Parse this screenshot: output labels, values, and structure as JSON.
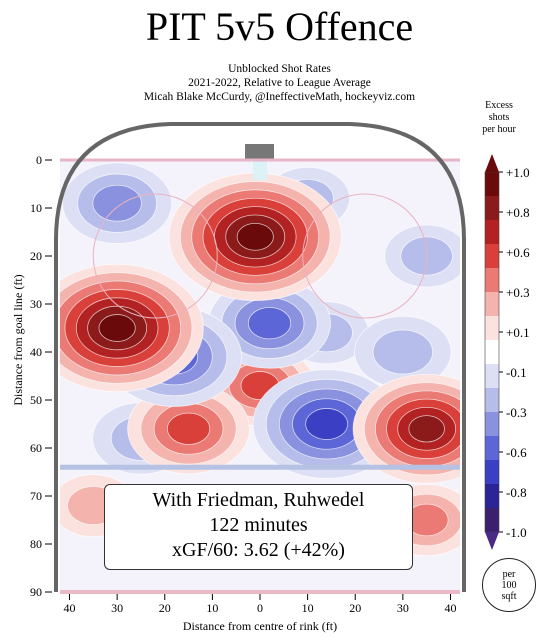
{
  "header": {
    "title": "PIT 5v5 Offence",
    "subtitle_1": "Unblocked Shot Rates",
    "subtitle_2": "2021-2022, Relative to League Average",
    "subtitle_3": "Micah Blake McCurdy, @IneffectiveMath, hockeyviz.com"
  },
  "info_box": {
    "line_1": "With Friedman, Ruhwedel",
    "line_2": "122 minutes",
    "line_3": "xGF/60: 3.62 (+42%)"
  },
  "legend": {
    "title_1": "Excess",
    "title_2": "shots",
    "title_3": "per hour",
    "unit_1": "per",
    "unit_2": "100",
    "unit_3": "sqft",
    "labels": [
      "+1.0",
      "+0.8",
      "+0.6",
      "+0.3",
      "+0.1",
      "-0.1",
      "-0.3",
      "-0.6",
      "-0.8",
      "-1.0"
    ],
    "colors": [
      "#6b0a0a",
      "#8b1a1a",
      "#b22222",
      "#d9403a",
      "#ec7a74",
      "#f4b3ad",
      "#fbe2df",
      "#ffffff",
      "#dde0f5",
      "#b7bdeb",
      "#8a92df",
      "#5c66d6",
      "#3a3fc4",
      "#2a2497",
      "#3c1f6e"
    ],
    "arrow_top_color": "#6b0a0a",
    "arrow_bottom_color": "#4a2a86"
  },
  "chart_data": {
    "type": "heatmap",
    "title": "PIT 5v5 Offence",
    "xlabel": "Distance from centre of rink (ft)",
    "ylabel": "Distance from goal line (ft)",
    "x_ticks": [
      "40",
      "30",
      "20",
      "10",
      "0",
      "10",
      "20",
      "30",
      "40"
    ],
    "y_ticks": [
      "0",
      "10",
      "20",
      "30",
      "40",
      "50",
      "60",
      "70",
      "80",
      "90"
    ],
    "xlim": [
      -42,
      42
    ],
    "ylim": [
      0,
      90
    ],
    "units": "Excess shots per hour per 100 sqft",
    "color_scale": [
      -1.0,
      1.0
    ],
    "hotspots": [
      {
        "x": -1,
        "y": 16,
        "value": 1.0
      },
      {
        "x": -30,
        "y": 35,
        "value": 1.0
      },
      {
        "x": 35,
        "y": 56,
        "value": 0.8
      },
      {
        "x": -15,
        "y": 56,
        "value": 0.6
      },
      {
        "x": 0,
        "y": 47,
        "value": 0.5
      },
      {
        "x": 35,
        "y": 75,
        "value": 0.4
      },
      {
        "x": -35,
        "y": 72,
        "value": 0.3
      },
      {
        "x": -30,
        "y": 9,
        "value": -0.5
      },
      {
        "x": -18,
        "y": 41,
        "value": -0.7
      },
      {
        "x": 2,
        "y": 34,
        "value": -0.6
      },
      {
        "x": 14,
        "y": 55,
        "value": -0.8
      },
      {
        "x": 14,
        "y": 36,
        "value": -0.3
      },
      {
        "x": 30,
        "y": 40,
        "value": -0.4
      },
      {
        "x": 35,
        "y": 20,
        "value": -0.3
      },
      {
        "x": 10,
        "y": 8,
        "value": -0.3
      },
      {
        "x": -25,
        "y": 58,
        "value": -0.4
      }
    ]
  }
}
